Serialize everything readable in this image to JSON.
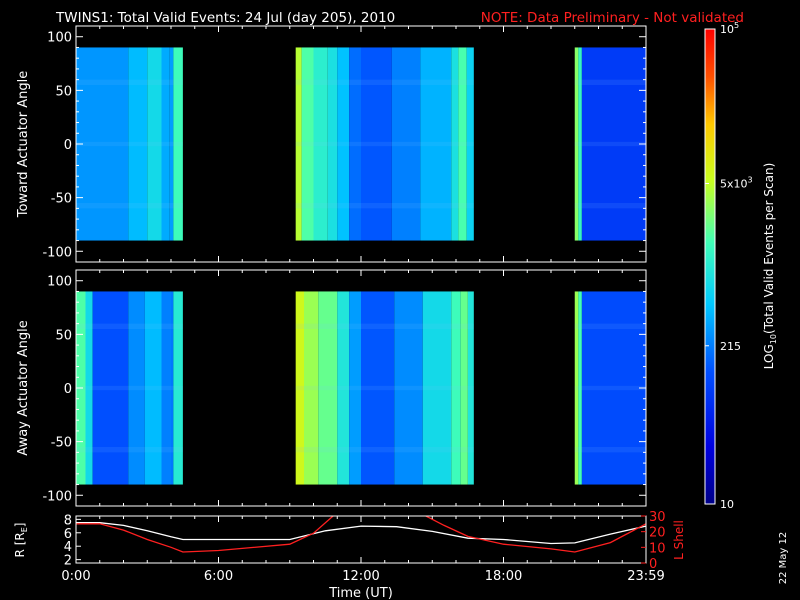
{
  "header": {
    "title": "TWINS1: Total Valid Events: 24 Jul (day 205), 2010",
    "note": "NOTE: Data Preliminary - Not validated",
    "note_color": "#ff2020"
  },
  "footer": {
    "date_stamp": "22 May 12"
  },
  "chart_data": [
    {
      "type": "heatmap",
      "ylabel": "Toward Actuator Angle",
      "ylim": [
        -110,
        110
      ],
      "yticks": [
        -100,
        -50,
        0,
        50,
        100
      ],
      "ytick_labels": [
        "-100",
        "-50",
        "0",
        "50",
        "100"
      ],
      "data_angle_range": [
        -90,
        90
      ],
      "blocks": [
        {
          "start_hour": 0.0,
          "end_hour": 4.5,
          "bands": [
            [
              0.0,
              2.2,
              280
            ],
            [
              2.2,
              3.0,
              420
            ],
            [
              3.0,
              3.6,
              700
            ],
            [
              3.6,
              3.95,
              350
            ],
            [
              3.95,
              4.1,
              300
            ],
            [
              4.1,
              4.5,
              1500
            ]
          ]
        },
        {
          "start_hour": 9.25,
          "end_hour": 16.75,
          "bands": [
            [
              9.25,
              9.5,
              4500
            ],
            [
              9.5,
              10.0,
              1800
            ],
            [
              10.0,
              10.6,
              1100
            ],
            [
              10.6,
              11.0,
              800
            ],
            [
              11.0,
              11.5,
              450
            ],
            [
              11.5,
              12.0,
              180
            ],
            [
              12.0,
              13.3,
              140
            ],
            [
              13.3,
              14.5,
              220
            ],
            [
              14.5,
              15.8,
              380
            ],
            [
              15.8,
              16.1,
              800
            ],
            [
              16.1,
              16.45,
              1700
            ],
            [
              16.45,
              16.75,
              600
            ]
          ]
        },
        {
          "start_hour": 21.0,
          "end_hour": 24.0,
          "bands": [
            [
              21.0,
              21.15,
              3000
            ],
            [
              21.15,
              21.3,
              1300
            ],
            [
              21.3,
              24.0,
              90
            ]
          ]
        }
      ]
    },
    {
      "type": "heatmap",
      "ylabel": "Away Actuator Angle",
      "ylim": [
        -110,
        110
      ],
      "yticks": [
        -100,
        -50,
        0,
        50,
        100
      ],
      "ytick_labels": [
        "-100",
        "-50",
        "0",
        "50",
        "100"
      ],
      "data_angle_range": [
        -90,
        90
      ],
      "blocks": [
        {
          "start_hour": 0.0,
          "end_hour": 4.5,
          "bands": [
            [
              0.0,
              0.4,
              1800
            ],
            [
              0.4,
              0.7,
              700
            ],
            [
              0.7,
              2.2,
              130
            ],
            [
              2.2,
              2.9,
              250
            ],
            [
              2.9,
              3.6,
              420
            ],
            [
              3.6,
              4.0,
              220
            ],
            [
              4.0,
              4.1,
              200
            ],
            [
              4.1,
              4.5,
              1000
            ]
          ]
        },
        {
          "start_hour": 9.25,
          "end_hour": 16.75,
          "bands": [
            [
              9.25,
              9.6,
              6000
            ],
            [
              9.6,
              10.2,
              3500
            ],
            [
              10.2,
              11.0,
              2200
            ],
            [
              11.0,
              11.5,
              900
            ],
            [
              11.5,
              12.0,
              300
            ],
            [
              12.0,
              13.4,
              140
            ],
            [
              13.4,
              14.6,
              250
            ],
            [
              14.6,
              15.8,
              700
            ],
            [
              15.8,
              16.2,
              1500
            ],
            [
              16.2,
              16.5,
              2200
            ],
            [
              16.5,
              16.75,
              900
            ]
          ]
        },
        {
          "start_hour": 21.0,
          "end_hour": 24.0,
          "bands": [
            [
              21.0,
              21.15,
              3500
            ],
            [
              21.15,
              21.3,
              1600
            ],
            [
              21.3,
              24.0,
              120
            ]
          ]
        }
      ]
    },
    {
      "type": "line",
      "ylabel": "R [R",
      "ylabel_sub": "E",
      "ylabel_end": "]",
      "ylim": [
        1.5,
        8.5
      ],
      "yticks": [
        2,
        4,
        6,
        8
      ],
      "ytick_labels": [
        "2",
        "4",
        "6",
        "8"
      ],
      "y2label": "L Shell",
      "y2lim": [
        0,
        30
      ],
      "y2ticks": [
        0,
        10,
        20,
        30
      ],
      "y2tick_labels": [
        "0",
        "10",
        "20",
        "30"
      ],
      "y2color": "#ff2020",
      "xlim": [
        0,
        24
      ],
      "xticks": [
        0,
        6,
        12,
        18,
        24
      ],
      "xtick_labels": [
        "0:00",
        "6:00",
        "12:00",
        "18:00",
        "23:59"
      ],
      "xlabel": "Time (UT)",
      "series": [
        {
          "axis": "left",
          "color": "#ffffff",
          "x": [
            0,
            1.0,
            2.0,
            3.0,
            4.0,
            4.5,
            6.0,
            9.0,
            10.5,
            12.0,
            13.5,
            15.0,
            16.5,
            18.0,
            20.0,
            21.0,
            22.5,
            24.0
          ],
          "y": [
            7.5,
            7.5,
            7.1,
            6.3,
            5.4,
            5.0,
            5.0,
            5.0,
            6.3,
            7.0,
            6.9,
            6.2,
            5.2,
            5.0,
            4.4,
            4.5,
            5.8,
            7.0
          ]
        },
        {
          "axis": "right",
          "color": "#ff2020",
          "x": [
            0,
            1.0,
            2.0,
            3.0,
            4.0,
            4.5,
            6.0,
            9.0,
            10.0,
            10.9,
            14.6,
            15.5,
            16.5,
            18.0,
            20.0,
            21.0,
            22.5,
            24.0
          ],
          "y": [
            25,
            25,
            21,
            15,
            10,
            7,
            8,
            12,
            19,
            31,
            31,
            24,
            17,
            12,
            9,
            7,
            13,
            25
          ]
        }
      ]
    }
  ],
  "colorbar": {
    "label": "LOG",
    "label_sub": "10",
    "label_rest": "(Total Valid Events per Scan)",
    "min": 10,
    "max": 100000,
    "ticks": [
      {
        "value": 100000,
        "label": "10",
        "sup": "5"
      },
      {
        "value": 5000,
        "label": "5x10",
        "sup": "3"
      },
      {
        "value": 215,
        "label": "215",
        "sup": ""
      },
      {
        "value": 10,
        "label": "10",
        "sup": ""
      }
    ]
  }
}
